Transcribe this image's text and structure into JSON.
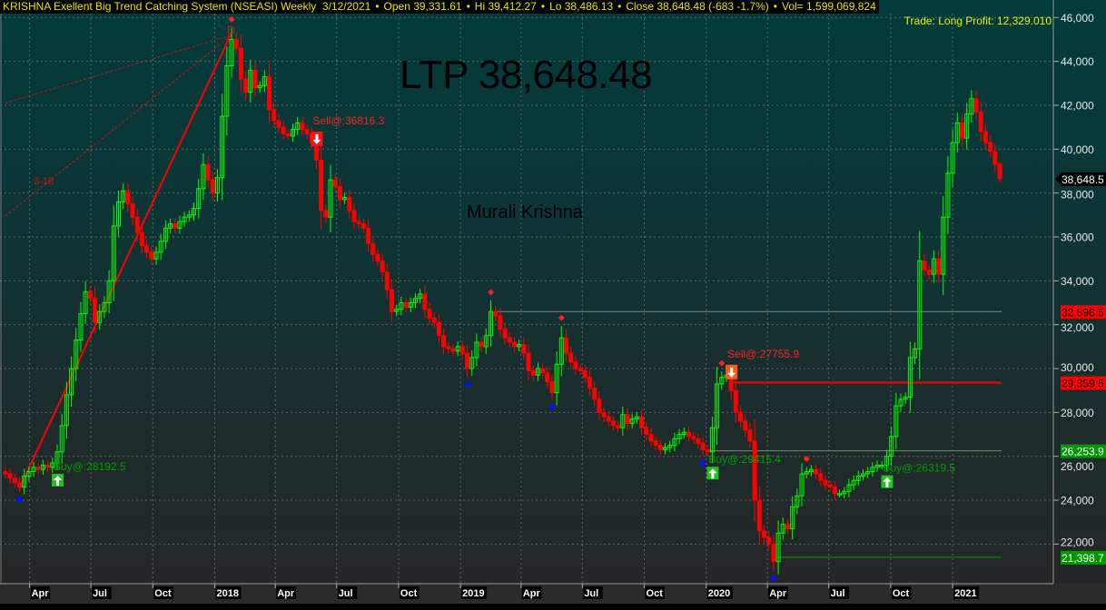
{
  "header": {
    "title": "KRISHNA Exellent Big Trend Catching System (NSEASI) Weekly",
    "date": "3/12/2021",
    "open": "Open 39,331.61",
    "hi": "Hi 39,412.27",
    "lo": "Lo 38,486.13",
    "close": "Close 38,648.48 (-683 -1.7%)",
    "vol": "Vol= 1,599,069,824"
  },
  "trade_info": "Trade: Long Profit: 12,329.010",
  "ltp": "LTP 38,648.48",
  "author": "Murali Krishna",
  "chart_data": {
    "type": "candlestick",
    "interval": "weekly",
    "last_date": "2021-03-12",
    "last_bar": {
      "open": 39331.61,
      "high": 39412.27,
      "low": 38486.13,
      "close": 38648.48
    },
    "close": [
      25200,
      25000,
      24800,
      24600,
      25100,
      25300,
      25500,
      25400,
      25600,
      25500,
      25700,
      26200,
      27400,
      28800,
      30000,
      31300,
      32500,
      33500,
      33200,
      32100,
      32600,
      33000,
      34000,
      36500,
      37600,
      38100,
      37500,
      36900,
      36200,
      35600,
      35300,
      35000,
      35300,
      35800,
      36400,
      36600,
      36400,
      36700,
      36900,
      37000,
      37300,
      38200,
      39300,
      38600,
      38000,
      38700,
      41500,
      43800,
      45000,
      44600,
      43200,
      42600,
      43600,
      42800,
      42900,
      43300,
      41800,
      41300,
      41000,
      40700,
      40600,
      40900,
      41200,
      40900,
      40700,
      40300,
      39500,
      37200,
      36900,
      38600,
      38300,
      37700,
      37800,
      37200,
      36700,
      36600,
      36400,
      35700,
      35200,
      34900,
      34400,
      33600,
      32600,
      32700,
      33000,
      32800,
      33000,
      33200,
      33400,
      32700,
      32300,
      32100,
      31500,
      31000,
      30900,
      30800,
      31000,
      30700,
      30000,
      30500,
      31200,
      31000,
      31500,
      32600,
      32400,
      31800,
      31400,
      31200,
      31000,
      31100,
      30700,
      29900,
      29700,
      30000,
      29800,
      29400,
      28900,
      30200,
      31400,
      30700,
      30300,
      30000,
      29900,
      29600,
      29100,
      28600,
      28000,
      27800,
      27600,
      27400,
      27300,
      27900,
      27500,
      27700,
      27800,
      27300,
      27000,
      26700,
      26500,
      26300,
      26400,
      26500,
      26800,
      27000,
      27100,
      26900,
      26800,
      26600,
      26300,
      26200,
      27300,
      29300,
      29600,
      29700,
      29000,
      28000,
      27600,
      27200,
      26700,
      24000,
      22600,
      22300,
      22000,
      21200,
      22500,
      22900,
      22700,
      23700,
      24200,
      25200,
      25300,
      25400,
      25200,
      24900,
      24700,
      24600,
      24300,
      24300,
      24400,
      24700,
      24900,
      25100,
      25200,
      25300,
      25500,
      25600,
      25600,
      26000,
      26900,
      28300,
      28600,
      28700,
      30500,
      30900,
      34900,
      34500,
      34300,
      35000,
      34300,
      36900,
      38900,
      40300,
      41200,
      40500,
      41600,
      42300,
      41700,
      40800,
      40300,
      39900,
      39300,
      38648.48
    ],
    "ylim": [
      20500,
      46800
    ],
    "y_ticks": [
      22000,
      24000,
      26000,
      28000,
      30000,
      32000,
      34000,
      36000,
      38000,
      40000,
      42000,
      44000,
      46000
    ],
    "y_tick_labels": [
      "22,000",
      "24,000",
      "26,000",
      "28,000",
      "30,000",
      "32,000",
      "34,000",
      "36,000",
      "38,000",
      "40,000",
      "42,000",
      "44,000",
      "46,000"
    ],
    "x_tick_labels": [
      "Apr",
      "Jul",
      "Oct",
      "2018",
      "Apr",
      "Jul",
      "Oct",
      "2019",
      "Apr",
      "Jul",
      "Oct",
      "2020",
      "Apr",
      "Jul",
      "Oct",
      "2021"
    ],
    "grid": true,
    "colors": {
      "up": "#00ff00",
      "down": "#ff0000",
      "header_text": "#e8e800"
    },
    "price_labels": [
      {
        "value": 38648.5,
        "text": "38,648.5",
        "bg": "#000000",
        "fg": "#ffffff",
        "pointer": true
      },
      {
        "value": 32596.5,
        "text": "32,596.5",
        "bg": "#ff0000",
        "fg": "#000000"
      },
      {
        "value": 29359.5,
        "text": "29,359.5",
        "bg": "#ff0000",
        "fg": "#000000"
      },
      {
        "value": 26253.9,
        "text": "26,253.9",
        "bg": "#009900",
        "fg": "#ffffff"
      },
      {
        "value": 21398.7,
        "text": "21,398.7",
        "bg": "#009900",
        "fg": "#ffffff"
      }
    ],
    "level_lines": [
      {
        "value": 32596.5,
        "from_bar": 104,
        "color": "#7a8a88"
      },
      {
        "value": 29359.5,
        "from_bar": 154,
        "color": "#ff0000"
      },
      {
        "value": 26253.9,
        "from_bar": 149,
        "color": "#6f8f6f"
      },
      {
        "value": 21398.7,
        "from_bar": 163,
        "color": "#00a000"
      }
    ],
    "signals": [
      {
        "type": "buy",
        "bar": 11,
        "price": 28192.5,
        "label": "Buy@:28192.5"
      },
      {
        "type": "sell",
        "bar": 66,
        "price": 36816.3,
        "label": "Sell@:36816.3"
      },
      {
        "type": "buy",
        "bar": 150,
        "price": 29415.4,
        "label": "Buy@:29415.4"
      },
      {
        "type": "sell",
        "bar": 154,
        "price": 27755.9,
        "label": "Sell@:27755.9"
      },
      {
        "type": "buy",
        "bar": 187,
        "price": 26319.5,
        "label": "Buy@:26319.5"
      }
    ],
    "peak_markers": [
      48,
      103,
      118,
      152,
      170
    ],
    "trough_markers": [
      3,
      98,
      116,
      148,
      163
    ],
    "trend_line": {
      "from_bar": 3,
      "from_price": 24540,
      "to_bar": 48,
      "to_price": 45300,
      "color": "#ff0000"
    },
    "fan_lines": [
      {
        "from_bar": 0,
        "from_price": 42100,
        "to_bar": 48,
        "to_price": 45200
      },
      {
        "from_bar": 0,
        "from_price": 36950,
        "to_bar": 48,
        "to_price": 45200
      }
    ],
    "annotations": [
      {
        "text": "3-18",
        "bar": 6,
        "price": 38400
      },
      {
        "text": "D",
        "bar": 47,
        "price": 46000
      }
    ]
  }
}
